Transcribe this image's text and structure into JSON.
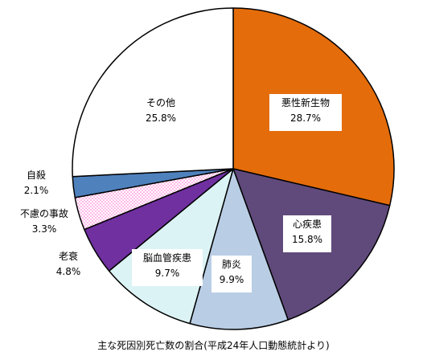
{
  "chart_data": {
    "type": "pie",
    "title": "",
    "caption": "主な死因別死亡数の割合(平成24年人口動態統計より)",
    "start_angle_deg": 0,
    "direction": "clockwise",
    "slices": [
      {
        "name": "悪性新生物",
        "value": 28.7,
        "label": "28.7%",
        "color": "#e46c0a",
        "pattern": "solid"
      },
      {
        "name": "心疾患",
        "value": 15.8,
        "label": "15.8%",
        "color": "#604a7b",
        "pattern": "solid"
      },
      {
        "name": "肺炎",
        "value": 9.9,
        "label": "9.9%",
        "color": "#b9cde5",
        "pattern": "solid"
      },
      {
        "name": "脳血管疾患",
        "value": 9.7,
        "label": "9.7%",
        "color": "#dcf3f5",
        "pattern": "solid"
      },
      {
        "name": "老衰",
        "value": 4.8,
        "label": "4.8%",
        "color": "#7030a0",
        "pattern": "solid"
      },
      {
        "name": "不慮の事故",
        "value": 3.3,
        "label": "3.3%",
        "color": "#ffffff",
        "pattern": "pink-dots"
      },
      {
        "name": "自殺",
        "value": 2.1,
        "label": "2.1%",
        "color": "#4f81bd",
        "pattern": "solid"
      },
      {
        "name": "その他",
        "value": 25.8,
        "label": "25.8%",
        "color": "#ffffff",
        "pattern": "solid"
      }
    ]
  }
}
